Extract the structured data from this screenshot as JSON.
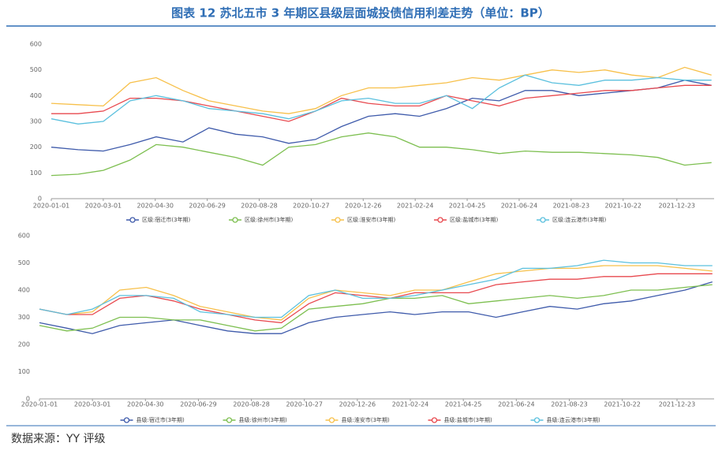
{
  "title": "图表 12 苏北五市 3 年期区县级层面城投债信用利差走势（单位：BP）",
  "source": "数据来源：YY 评级",
  "chart_data": [
    {
      "type": "line",
      "xlim": [
        "2020-01-01",
        "2022-02-04"
      ],
      "ylim": [
        0,
        600
      ],
      "yticks": [
        0,
        100,
        200,
        300,
        400,
        500,
        600
      ],
      "grid": false,
      "xticks": [
        "2020-01-01",
        "2020-03-01",
        "2020-04-30",
        "2020-06-29",
        "2020-08-28",
        "2020-10-27",
        "2020-12-26",
        "2021-02-24",
        "2021-04-25",
        "2021-06-24",
        "2021-08-23",
        "2021-10-22",
        "2021-12-23"
      ],
      "x": [
        "2020-01-01",
        "2020-02-01",
        "2020-03-01",
        "2020-04-01",
        "2020-05-01",
        "2020-06-01",
        "2020-07-01",
        "2020-08-01",
        "2020-09-01",
        "2020-10-01",
        "2020-11-01",
        "2020-12-01",
        "2021-01-01",
        "2021-02-01",
        "2021-03-01",
        "2021-04-01",
        "2021-05-01",
        "2021-06-01",
        "2021-07-01",
        "2021-08-01",
        "2021-09-01",
        "2021-10-01",
        "2021-11-01",
        "2021-12-01",
        "2022-01-01",
        "2022-02-01"
      ],
      "series": [
        {
          "name": "区级:宿迁市(3年期)",
          "color": "#3f5bab",
          "values": [
            200,
            190,
            185,
            210,
            240,
            220,
            275,
            250,
            240,
            215,
            230,
            280,
            320,
            330,
            320,
            350,
            390,
            380,
            420,
            420,
            400,
            410,
            420,
            430,
            460,
            440
          ]
        },
        {
          "name": "区级:徐州市(3年期)",
          "color": "#7dbf50",
          "values": [
            90,
            95,
            110,
            150,
            210,
            200,
            180,
            160,
            130,
            200,
            210,
            240,
            255,
            240,
            200,
            200,
            190,
            175,
            185,
            180,
            180,
            175,
            170,
            160,
            130,
            140
          ]
        },
        {
          "name": "区级:淮安市(3年期)",
          "color": "#f7c04a",
          "values": [
            370,
            365,
            360,
            450,
            470,
            420,
            380,
            360,
            340,
            330,
            350,
            400,
            430,
            430,
            440,
            450,
            470,
            460,
            480,
            500,
            490,
            500,
            480,
            470,
            510,
            480
          ]
        },
        {
          "name": "区级:盐城市(3年期)",
          "color": "#e8494f",
          "values": [
            330,
            330,
            340,
            390,
            390,
            380,
            360,
            340,
            320,
            300,
            340,
            390,
            370,
            360,
            360,
            400,
            380,
            360,
            390,
            400,
            410,
            420,
            420,
            430,
            440,
            440
          ]
        },
        {
          "name": "区级:连云港市(3年期)",
          "color": "#5bc0de",
          "values": [
            310,
            290,
            300,
            380,
            400,
            380,
            350,
            340,
            330,
            310,
            340,
            380,
            390,
            370,
            370,
            400,
            350,
            430,
            480,
            450,
            440,
            460,
            460,
            470,
            460,
            460
          ]
        }
      ]
    },
    {
      "type": "line",
      "xlim": [
        "2020-01-01",
        "2022-02-03"
      ],
      "ylim": [
        0,
        600
      ],
      "yticks": [
        0,
        100,
        200,
        300,
        400,
        500,
        600
      ],
      "grid": false,
      "xticks": [
        "2020-01-01",
        "2020-03-01",
        "2020-04-30",
        "2020-06-29",
        "2020-08-28",
        "2020-10-27",
        "2020-12-26",
        "2021-02-24",
        "2021-04-25",
        "2021-06-24",
        "2021-08-23",
        "2021-10-22",
        "2021-12-23"
      ],
      "x": [
        "2020-01-01",
        "2020-02-01",
        "2020-03-01",
        "2020-04-01",
        "2020-05-01",
        "2020-06-01",
        "2020-07-01",
        "2020-08-01",
        "2020-09-01",
        "2020-10-01",
        "2020-11-01",
        "2020-12-01",
        "2021-01-01",
        "2021-02-01",
        "2021-03-01",
        "2021-04-01",
        "2021-05-01",
        "2021-06-01",
        "2021-07-01",
        "2021-08-01",
        "2021-09-01",
        "2021-10-01",
        "2021-11-01",
        "2021-12-01",
        "2022-01-01",
        "2022-02-01"
      ],
      "series": [
        {
          "name": "县级:宿迁市(3年期)",
          "color": "#3f5bab",
          "values": [
            280,
            260,
            240,
            270,
            280,
            290,
            270,
            250,
            240,
            240,
            280,
            300,
            310,
            320,
            310,
            320,
            320,
            300,
            320,
            340,
            330,
            350,
            360,
            380,
            400,
            430
          ]
        },
        {
          "name": "县级:徐州市(3年期)",
          "color": "#7dbf50",
          "values": [
            270,
            250,
            260,
            300,
            300,
            290,
            290,
            270,
            250,
            260,
            330,
            340,
            350,
            370,
            370,
            380,
            350,
            360,
            370,
            380,
            370,
            380,
            400,
            400,
            410,
            420
          ]
        },
        {
          "name": "县级:淮安市(3年期)",
          "color": "#f7c04a",
          "values": [
            330,
            310,
            320,
            400,
            410,
            380,
            340,
            320,
            300,
            290,
            370,
            400,
            390,
            380,
            400,
            400,
            430,
            460,
            470,
            480,
            480,
            490,
            490,
            490,
            480,
            470
          ]
        },
        {
          "name": "县级:盐城市(3年期)",
          "color": "#e8494f",
          "values": [
            330,
            310,
            310,
            370,
            380,
            360,
            330,
            310,
            290,
            280,
            350,
            390,
            380,
            370,
            390,
            390,
            390,
            420,
            430,
            440,
            440,
            450,
            450,
            460,
            460,
            460
          ]
        },
        {
          "name": "县级:连云港市(3年期)",
          "color": "#5bc0de",
          "values": [
            330,
            310,
            330,
            380,
            380,
            370,
            320,
            310,
            300,
            300,
            380,
            400,
            370,
            370,
            380,
            400,
            420,
            440,
            480,
            480,
            490,
            510,
            500,
            500,
            490,
            490
          ]
        }
      ]
    }
  ]
}
